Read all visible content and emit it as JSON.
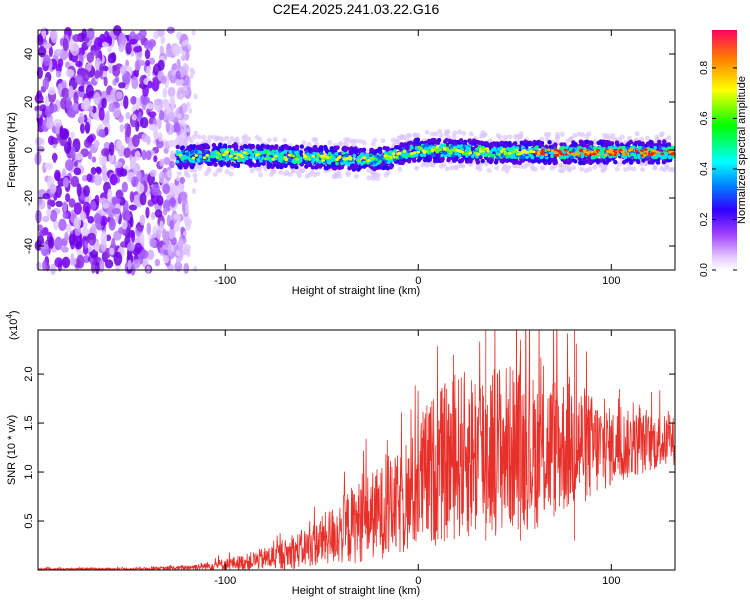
{
  "title": "C2E4.2025.241.03.22.G16",
  "chart_data": [
    {
      "type": "heatmap",
      "title": "C2E4.2025.241.03.22.G16",
      "xlabel": "Height of straight line (km)",
      "ylabel": "Frequency (Hz)",
      "xlim": [
        -197,
        133
      ],
      "ylim": [
        -50,
        50
      ],
      "xticks": [
        -100,
        0,
        100
      ],
      "yticks": [
        -40,
        -20,
        0,
        20,
        40
      ],
      "signal_track": {
        "start_height_km": -125,
        "center_freq_hz": [
          {
            "x": -125,
            "y": -3
          },
          {
            "x": -100,
            "y": -2
          },
          {
            "x": -60,
            "y": -3
          },
          {
            "x": -20,
            "y": -4
          },
          {
            "x": 0,
            "y": 0
          },
          {
            "x": 50,
            "y": -1
          },
          {
            "x": 100,
            "y": -1
          },
          {
            "x": 133,
            "y": -1
          }
        ],
        "max_amplitude_height_km": 133
      },
      "colorbar": {
        "label": "Normalized spectral amplitude",
        "range": [
          0.0,
          0.95
        ],
        "ticks": [
          0.0,
          0.2,
          0.4,
          0.6,
          0.8
        ],
        "tick_labels": [
          "0.0",
          "0.2",
          "0.4",
          "0.6",
          "0.8"
        ],
        "colormap": [
          "#ffffff",
          "#d9b3ff",
          "#8000ff",
          "#0000ff",
          "#00ffff",
          "#00ff00",
          "#ffff00",
          "#ff8000",
          "#ff0000"
        ]
      }
    },
    {
      "type": "line",
      "xlabel": "Height of straight line (km)",
      "ylabel": "SNR (10 * v/v)",
      "y_multiplier_label": "(x10",
      "y_multiplier_exp": "4",
      "xlim": [
        -197,
        133
      ],
      "ylim": [
        0,
        2.45
      ],
      "xticks": [
        -100,
        0,
        100
      ],
      "yticks": [
        0.5,
        1.0,
        1.5,
        2.0
      ],
      "ytick_labels": [
        "0.5",
        "1.0",
        "1.5",
        "2.0"
      ],
      "line_color": "#e8302a",
      "series": [
        {
          "name": "SNR",
          "x": [
            -197,
            -150,
            -125,
            -110,
            -90,
            -70,
            -55,
            -45,
            -35,
            -25,
            -15,
            -5,
            0,
            10,
            20,
            30,
            40,
            50,
            60,
            70,
            80,
            90,
            100,
            110,
            120,
            133
          ],
          "y": [
            0.01,
            0.01,
            0.02,
            0.04,
            0.08,
            0.15,
            0.25,
            0.35,
            0.45,
            0.55,
            0.62,
            0.7,
            0.9,
            1.05,
            1.15,
            1.2,
            1.25,
            1.25,
            1.2,
            1.25,
            1.3,
            1.25,
            1.25,
            1.28,
            1.3,
            1.32
          ],
          "noise_amplitude": [
            0.01,
            0.01,
            0.02,
            0.04,
            0.08,
            0.15,
            0.22,
            0.3,
            0.4,
            0.45,
            0.5,
            0.55,
            0.7,
            0.8,
            0.85,
            0.9,
            0.9,
            0.85,
            0.8,
            0.75,
            0.7,
            0.55,
            0.4,
            0.35,
            0.3,
            0.25
          ]
        }
      ],
      "peak_values": [
        {
          "x": 35,
          "y": 2.45
        },
        {
          "x": 53,
          "y": 2.35
        },
        {
          "x": 81,
          "y": 2.45
        }
      ]
    }
  ]
}
